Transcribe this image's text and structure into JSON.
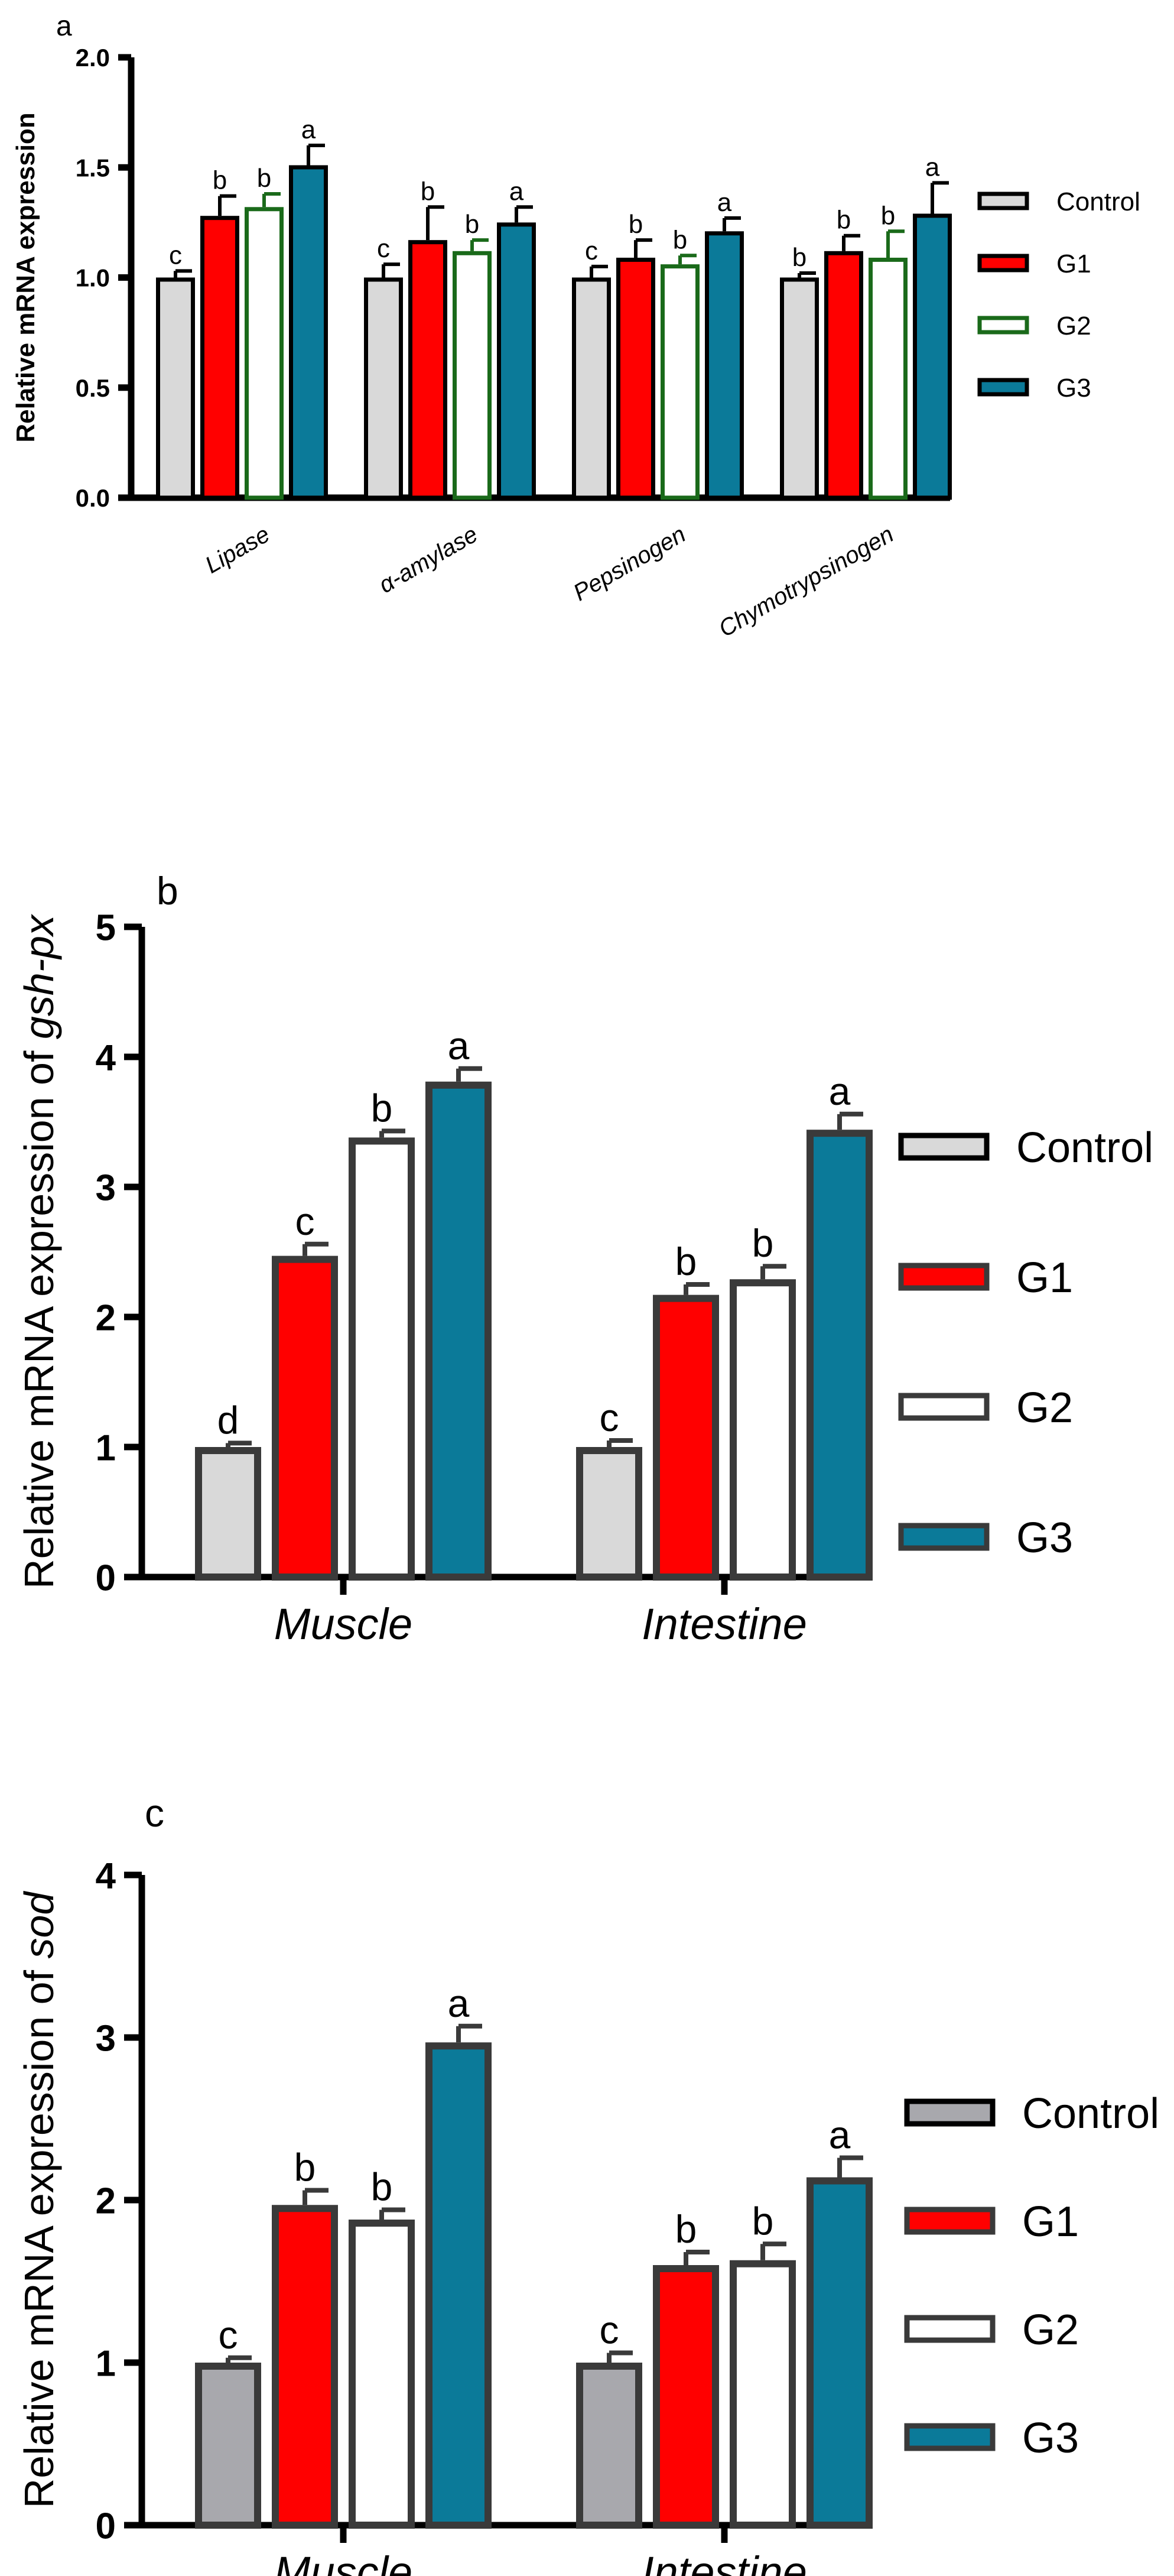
{
  "colors": {
    "control": "#d9d9d9",
    "control_c": "#a8a8ad",
    "g1": "#ff0000",
    "g2": "#ffffff",
    "g3": "#0b7a99",
    "edge": "#3a3a3a",
    "g2_edge_a": "#1a6a1a"
  },
  "chart_data": [
    {
      "panel_label": "a",
      "type": "bar",
      "title": "",
      "xlabel": "",
      "ylabel": "Relative mRNA expression",
      "ylim": [
        0,
        2.0
      ],
      "yticks": [
        "0.0",
        "0.5",
        "1.0",
        "1.5",
        "2.0"
      ],
      "categories": [
        "Lipase",
        "α-amylase",
        "Pepsinogen",
        "Chymotrypsinogen"
      ],
      "legend": [
        "Control",
        "G1",
        "G2",
        "G3"
      ],
      "legend_position": "right",
      "series": [
        {
          "name": "Control",
          "values": [
            1.0,
            1.0,
            1.0,
            1.0
          ],
          "errors": [
            0.03,
            0.06,
            0.05,
            0.02
          ],
          "letters": [
            "c",
            "c",
            "c",
            "b"
          ]
        },
        {
          "name": "G1",
          "values": [
            1.28,
            1.17,
            1.09,
            1.12
          ],
          "errors": [
            0.09,
            0.15,
            0.08,
            0.07
          ],
          "letters": [
            "b",
            "b",
            "b",
            "b"
          ]
        },
        {
          "name": "G2",
          "values": [
            1.32,
            1.12,
            1.06,
            1.09
          ],
          "errors": [
            0.06,
            0.05,
            0.04,
            0.12
          ],
          "letters": [
            "b",
            "b",
            "b",
            "b"
          ]
        },
        {
          "name": "G3",
          "values": [
            1.51,
            1.25,
            1.21,
            1.29
          ],
          "errors": [
            0.09,
            0.07,
            0.06,
            0.14
          ],
          "letters": [
            "a",
            "a",
            "a",
            "a"
          ]
        }
      ]
    },
    {
      "panel_label": "b",
      "type": "bar",
      "title": "",
      "xlabel": "",
      "ylabel_prefix": "Relative mRNA expression of ",
      "ylabel_gene": "gsh-px",
      "ylim": [
        0,
        5
      ],
      "yticks": [
        "0",
        "1",
        "2",
        "3",
        "4",
        "5"
      ],
      "categories": [
        "Muscle",
        "Intestine"
      ],
      "legend": [
        "Control",
        "G1",
        "G2",
        "G3"
      ],
      "legend_position": "right",
      "series": [
        {
          "name": "Control",
          "values": [
            1.0,
            1.0
          ],
          "errors": [
            0.03,
            0.05
          ],
          "letters": [
            "d",
            "c"
          ]
        },
        {
          "name": "G1",
          "values": [
            2.47,
            2.17
          ],
          "errors": [
            0.09,
            0.08
          ],
          "letters": [
            "c",
            "b"
          ]
        },
        {
          "name": "G2",
          "values": [
            3.38,
            2.29
          ],
          "errors": [
            0.05,
            0.1
          ],
          "letters": [
            "b",
            "b"
          ]
        },
        {
          "name": "G3",
          "values": [
            3.81,
            3.44
          ],
          "errors": [
            0.1,
            0.12
          ],
          "letters": [
            "a",
            "a"
          ]
        }
      ]
    },
    {
      "panel_label": "c",
      "type": "bar",
      "title": "",
      "xlabel": "",
      "ylabel_prefix": "Relative mRNA expression of ",
      "ylabel_gene": "sod",
      "ylim": [
        0,
        4
      ],
      "yticks": [
        "0",
        "1",
        "2",
        "3",
        "4"
      ],
      "categories": [
        "Muscle",
        "Intestine"
      ],
      "legend": [
        "Control",
        "G1",
        "G2",
        "G3"
      ],
      "legend_position": "right",
      "series": [
        {
          "name": "Control",
          "values": [
            1.0,
            1.0
          ],
          "errors": [
            0.03,
            0.06
          ],
          "letters": [
            "c",
            "c"
          ]
        },
        {
          "name": "G1",
          "values": [
            1.97,
            1.6
          ],
          "errors": [
            0.09,
            0.08
          ],
          "letters": [
            "b",
            "b"
          ]
        },
        {
          "name": "G2",
          "values": [
            1.88,
            1.63
          ],
          "errors": [
            0.06,
            0.1
          ],
          "letters": [
            "b",
            "b"
          ]
        },
        {
          "name": "G3",
          "values": [
            2.97,
            2.14
          ],
          "errors": [
            0.1,
            0.12
          ],
          "letters": [
            "a",
            "a"
          ]
        }
      ]
    }
  ]
}
